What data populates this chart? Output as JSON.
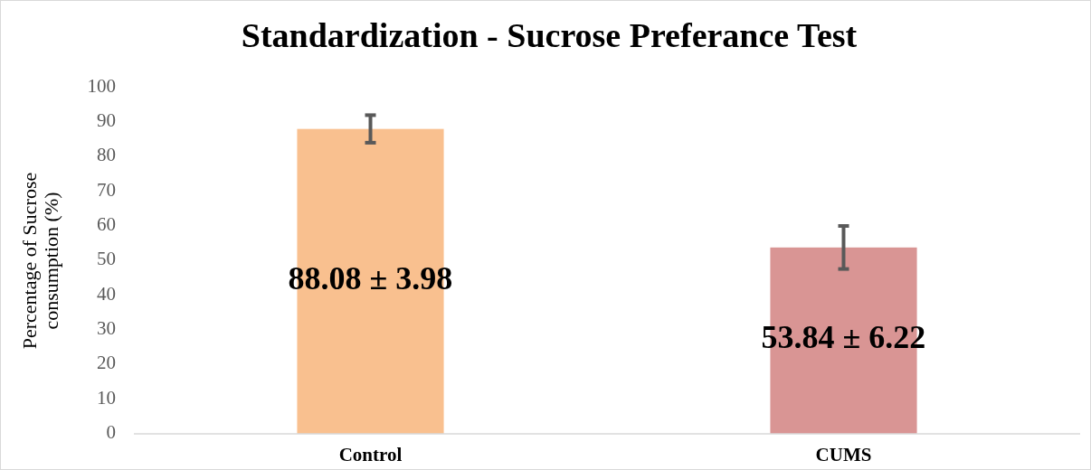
{
  "chart_data": {
    "type": "bar",
    "title": "Standardization - Sucrose Preferance Test",
    "ylabel": "Percentage of Sucrose consumption (%)",
    "categories": [
      "Control",
      "CUMS"
    ],
    "values": [
      88.08,
      53.84
    ],
    "colors": [
      "#f9c08f",
      "#d99594"
    ],
    "errors": [
      3.98,
      6.22
    ],
    "value_labels": [
      "88.08 ± 3.98",
      "53.84 ± 6.22"
    ],
    "ylim": [
      0,
      100
    ],
    "yticks": [
      0,
      10,
      20,
      30,
      40,
      50,
      60,
      70,
      80,
      90,
      100
    ],
    "grid": false
  }
}
